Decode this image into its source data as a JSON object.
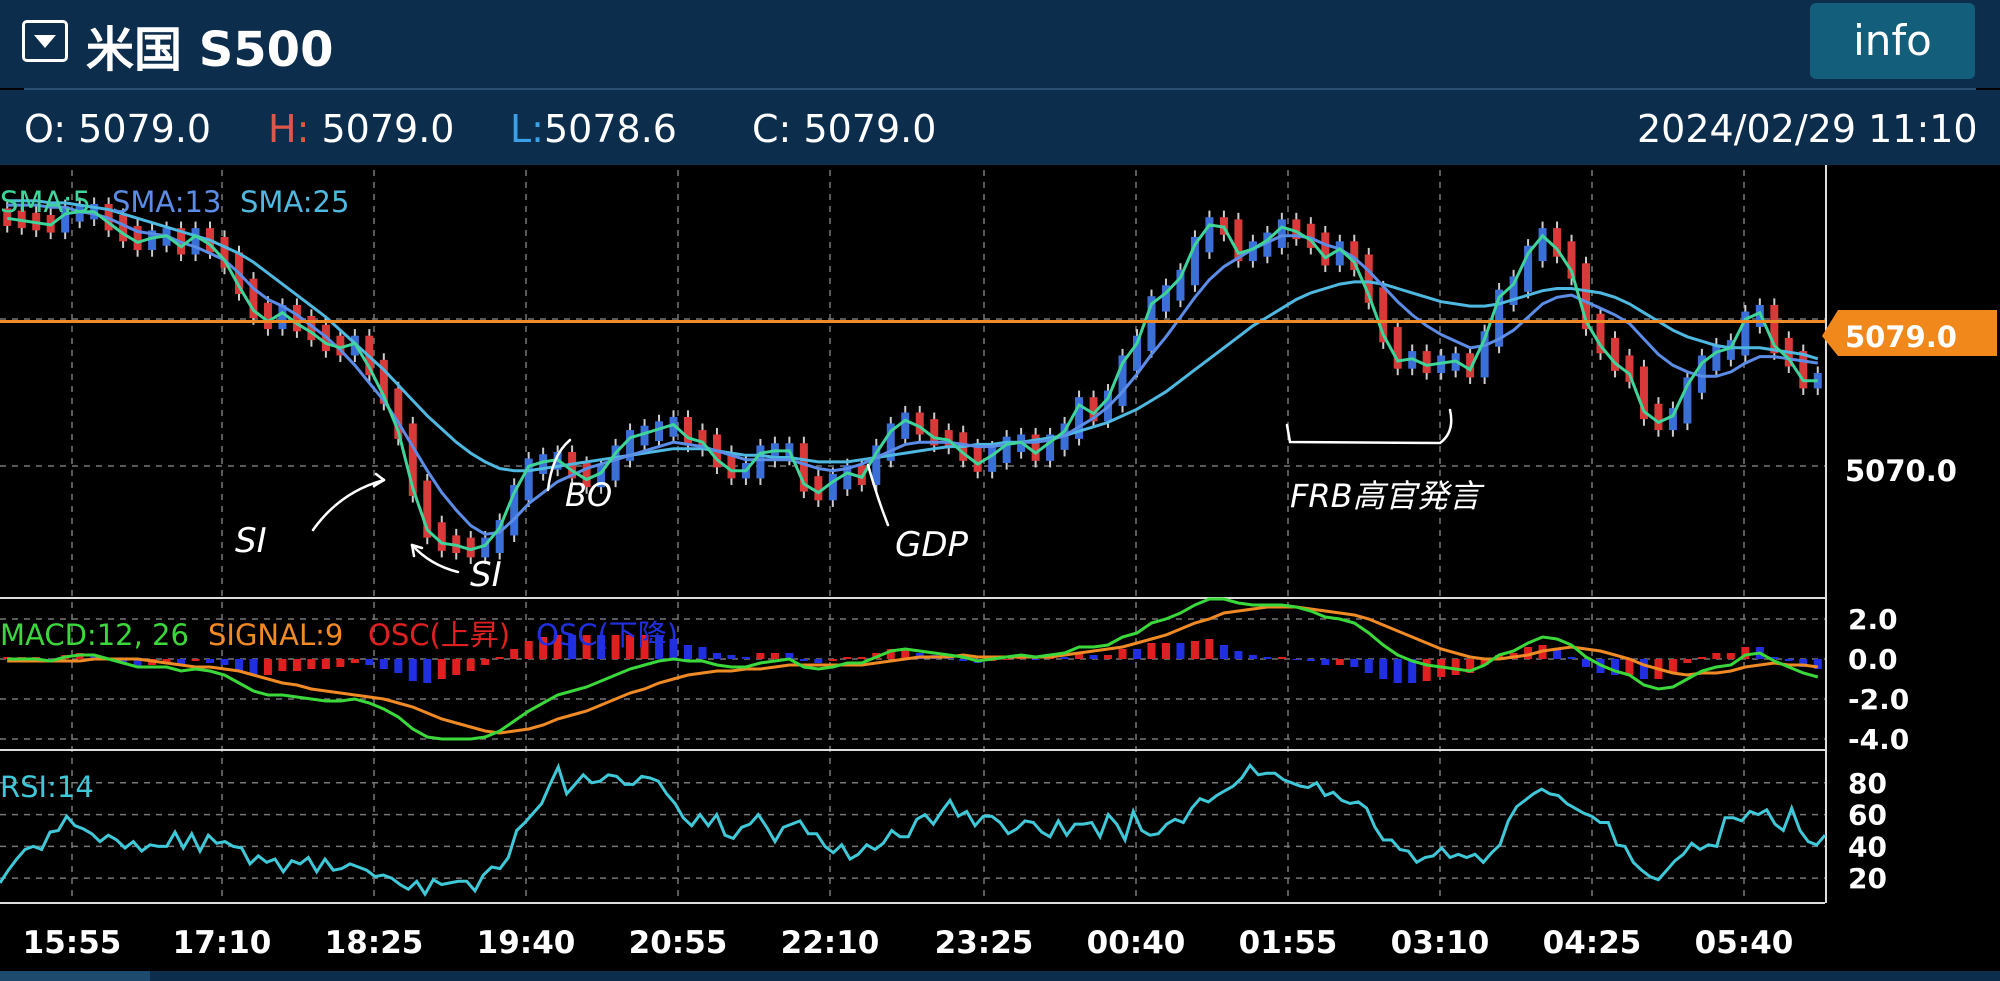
{
  "header": {
    "title": "米国 S500",
    "info_label": "info"
  },
  "ohlc": {
    "o_label": "O:",
    "o_value": "5079.0",
    "h_label": "H:",
    "h_value": "5079.0",
    "l_label": "L:",
    "l_value": "5078.6",
    "c_label": "C:",
    "c_value": "5079.0",
    "datetime": "2024/02/29 11:10"
  },
  "colors": {
    "header_bg": "#0c2d4c",
    "candle_up": "#3b6fd8",
    "candle_down": "#d83a3a",
    "sma5": "#3ed49a",
    "sma13": "#5b8ce6",
    "sma25": "#4fb8e0",
    "macd": "#3bd83b",
    "signal": "#f08a24",
    "osc_up": "#e02020",
    "osc_down": "#2030e0",
    "rsi": "#3ec8d8",
    "price_line": "#f08a24"
  },
  "chart_data": {
    "type": "candlestick",
    "price_axis": {
      "ylim": [
        5066.4,
        5085.9
      ],
      "tick_labels": [
        "5070.0"
      ],
      "current_price": 5079.0,
      "current_label": "5079.0"
    },
    "x_tick_labels": [
      "15:55",
      "17:10",
      "18:25",
      "19:40",
      "20:55",
      "22:10",
      "23:25",
      "00:40",
      "01:55",
      "03:10",
      "04:25",
      "05:40"
    ],
    "legend": {
      "sma5": "SMA:5",
      "sma13": "SMA:13",
      "sma25": "SMA:25"
    },
    "sma5": [
      5083.7,
      5083.6,
      5083.5,
      5083.4,
      5083.9,
      5084.0,
      5084.0,
      5083.5,
      5083.0,
      5082.6,
      5082.8,
      5082.9,
      5082.4,
      5082.9,
      5082.5,
      5081.8,
      5080.6,
      5079.5,
      5079.0,
      5079.4,
      5078.9,
      5078.5,
      5078.0,
      5077.8,
      5078.0,
      5076.9,
      5075.6,
      5074.0,
      5071.4,
      5069.5,
      5068.9,
      5068.8,
      5068.6,
      5068.8,
      5069.6,
      5071.2,
      5072.4,
      5072.6,
      5072.7,
      5072.2,
      5071.8,
      5072.1,
      5073.0,
      5073.7,
      5073.9,
      5074.1,
      5074.3,
      5073.7,
      5073.5,
      5072.7,
      5072.2,
      5072.2,
      5073.0,
      5073.1,
      5073.1,
      5071.6,
      5071.2,
      5071.7,
      5072.1,
      5071.9,
      5073.0,
      5074.0,
      5074.5,
      5074.2,
      5073.7,
      5073.6,
      5073.0,
      5072.5,
      5072.9,
      5073.4,
      5073.5,
      5073.0,
      5073.5,
      5074.0,
      5075.2,
      5074.8,
      5075.5,
      5077.1,
      5078.0,
      5079.8,
      5080.3,
      5081.0,
      5082.5,
      5083.4,
      5083.3,
      5082.1,
      5082.3,
      5082.7,
      5083.3,
      5083.1,
      5082.7,
      5081.9,
      5082.3,
      5081.7,
      5080.2,
      5078.4,
      5077.2,
      5077.3,
      5077.0,
      5077.1,
      5077.2,
      5076.8,
      5078.2,
      5080.1,
      5080.7,
      5082.1,
      5082.9,
      5082.3,
      5081.3,
      5079.0,
      5077.9,
      5077.1,
      5076.6,
      5074.9,
      5074.4,
      5074.7,
      5076.1,
      5077.1,
      5077.6,
      5077.8,
      5079.1,
      5079.4,
      5077.9,
      5077.3,
      5076.3,
      5076.3
    ],
    "sma13": [
      5084.3,
      5084.3,
      5084.3,
      5084.2,
      5084.2,
      5084.0,
      5083.9,
      5083.7,
      5083.4,
      5083.1,
      5083.0,
      5082.9,
      5082.6,
      5082.4,
      5082.1,
      5081.8,
      5081.2,
      5080.5,
      5080.0,
      5079.7,
      5079.3,
      5078.8,
      5078.3,
      5077.7,
      5077.0,
      5076.2,
      5075.4,
      5074.4,
      5073.3,
      5072.2,
      5071.2,
      5070.4,
      5069.7,
      5069.3,
      5069.4,
      5070.0,
      5070.7,
      5071.2,
      5071.7,
      5072.0,
      5072.3,
      5072.5,
      5072.7,
      5072.9,
      5073.1,
      5073.3,
      5073.5,
      5073.4,
      5073.3,
      5073.1,
      5072.9,
      5072.7,
      5072.7,
      5072.7,
      5072.7,
      5072.5,
      5072.3,
      5072.2,
      5072.3,
      5072.5,
      5072.8,
      5073.1,
      5073.4,
      5073.5,
      5073.5,
      5073.5,
      5073.4,
      5073.3,
      5073.3,
      5073.4,
      5073.5,
      5073.5,
      5073.6,
      5073.8,
      5074.2,
      5074.6,
      5075.1,
      5075.8,
      5076.6,
      5077.5,
      5078.3,
      5079.2,
      5080.1,
      5080.9,
      5081.5,
      5081.9,
      5082.3,
      5082.6,
      5082.9,
      5082.9,
      5082.8,
      5082.5,
      5082.3,
      5081.9,
      5081.3,
      5080.6,
      5079.9,
      5079.3,
      5078.8,
      5078.4,
      5078.1,
      5077.8,
      5077.9,
      5078.2,
      5078.6,
      5079.2,
      5079.8,
      5080.1,
      5080.2,
      5079.9,
      5079.6,
      5079.3,
      5078.9,
      5078.2,
      5077.5,
      5077.0,
      5076.7,
      5076.5,
      5076.5,
      5076.7,
      5077.1,
      5077.4,
      5077.4,
      5077.3,
      5077.2,
      5077.1
    ],
    "sma25": [
      5084.5,
      5084.5,
      5084.5,
      5084.4,
      5084.4,
      5084.3,
      5084.2,
      5084.1,
      5083.9,
      5083.7,
      5083.5,
      5083.3,
      5083.1,
      5082.9,
      5082.7,
      5082.4,
      5082.1,
      5081.7,
      5081.2,
      5080.7,
      5080.2,
      5079.7,
      5079.2,
      5078.6,
      5078.0,
      5077.4,
      5076.8,
      5076.1,
      5075.4,
      5074.7,
      5074.1,
      5073.5,
      5073.0,
      5072.6,
      5072.3,
      5072.2,
      5072.2,
      5072.3,
      5072.4,
      5072.5,
      5072.6,
      5072.7,
      5072.8,
      5072.9,
      5073.0,
      5073.1,
      5073.2,
      5073.2,
      5073.2,
      5073.1,
      5073.0,
      5072.9,
      5072.9,
      5072.8,
      5072.8,
      5072.7,
      5072.6,
      5072.6,
      5072.6,
      5072.7,
      5072.8,
      5072.9,
      5073.0,
      5073.1,
      5073.2,
      5073.3,
      5073.3,
      5073.4,
      5073.4,
      5073.5,
      5073.5,
      5073.6,
      5073.7,
      5073.8,
      5074.0,
      5074.2,
      5074.4,
      5074.7,
      5075.0,
      5075.4,
      5075.8,
      5076.3,
      5076.8,
      5077.3,
      5077.8,
      5078.3,
      5078.8,
      5079.2,
      5079.6,
      5080.0,
      5080.3,
      5080.5,
      5080.7,
      5080.8,
      5080.8,
      5080.7,
      5080.5,
      5080.3,
      5080.1,
      5079.9,
      5079.8,
      5079.7,
      5079.7,
      5079.8,
      5080.0,
      5080.2,
      5080.4,
      5080.5,
      5080.5,
      5080.4,
      5080.3,
      5080.1,
      5079.8,
      5079.4,
      5079.0,
      5078.6,
      5078.3,
      5078.1,
      5077.9,
      5077.8,
      5077.8,
      5077.8,
      5077.7,
      5077.6,
      5077.5,
      5077.3
    ],
    "annotations": [
      "SI",
      "SI",
      "BO",
      "GDP",
      "FRB高官発言"
    ]
  },
  "macd": {
    "legend_macd": "MACD:12, 26",
    "legend_signal": "SIGNAL:9",
    "legend_osc_up": "OSC(上昇)",
    "legend_osc_down": "OSC(下降)",
    "tick_labels": [
      "2.0",
      "0.0",
      "-2.0",
      "-4.0"
    ],
    "ylim": [
      -4.5,
      3.0
    ],
    "macd": [
      0.0,
      0.0,
      0.0,
      -0.1,
      0.1,
      0.2,
      0.2,
      0.0,
      -0.2,
      -0.4,
      -0.4,
      -0.4,
      -0.6,
      -0.5,
      -0.6,
      -0.8,
      -1.2,
      -1.6,
      -1.8,
      -1.8,
      -1.9,
      -2.0,
      -2.1,
      -2.1,
      -2.0,
      -2.2,
      -2.5,
      -2.9,
      -3.5,
      -3.9,
      -4.0,
      -4.0,
      -4.0,
      -3.9,
      -3.6,
      -3.1,
      -2.6,
      -2.2,
      -1.8,
      -1.6,
      -1.4,
      -1.1,
      -0.8,
      -0.5,
      -0.3,
      -0.1,
      0.0,
      -0.1,
      -0.1,
      -0.3,
      -0.4,
      -0.4,
      -0.2,
      -0.1,
      0.0,
      -0.4,
      -0.5,
      -0.4,
      -0.2,
      -0.2,
      0.1,
      0.4,
      0.5,
      0.4,
      0.3,
      0.2,
      0.1,
      -0.1,
      0.0,
      0.1,
      0.2,
      0.1,
      0.2,
      0.3,
      0.6,
      0.6,
      0.7,
      1.1,
      1.3,
      1.8,
      2.0,
      2.3,
      2.7,
      3.0,
      3.0,
      2.8,
      2.7,
      2.7,
      2.7,
      2.6,
      2.4,
      2.1,
      2.0,
      1.8,
      1.3,
      0.7,
      0.2,
      -0.1,
      -0.3,
      -0.4,
      -0.5,
      -0.6,
      -0.3,
      0.2,
      0.4,
      0.8,
      1.1,
      1.0,
      0.7,
      0.1,
      -0.3,
      -0.6,
      -0.8,
      -1.3,
      -1.5,
      -1.4,
      -1.0,
      -0.6,
      -0.4,
      -0.3,
      0.2,
      0.3,
      -0.1,
      -0.4,
      -0.7,
      -0.9
    ],
    "signal": [
      -0.1,
      -0.1,
      -0.1,
      -0.1,
      -0.1,
      -0.1,
      0.0,
      0.0,
      0.0,
      0.0,
      -0.1,
      -0.2,
      -0.3,
      -0.4,
      -0.4,
      -0.5,
      -0.6,
      -0.8,
      -1.0,
      -1.2,
      -1.3,
      -1.5,
      -1.6,
      -1.7,
      -1.8,
      -1.9,
      -2.0,
      -2.2,
      -2.4,
      -2.7,
      -3.0,
      -3.2,
      -3.4,
      -3.6,
      -3.7,
      -3.6,
      -3.5,
      -3.3,
      -3.0,
      -2.8,
      -2.6,
      -2.3,
      -2.0,
      -1.7,
      -1.5,
      -1.2,
      -1.0,
      -0.8,
      -0.7,
      -0.6,
      -0.6,
      -0.5,
      -0.5,
      -0.4,
      -0.3,
      -0.3,
      -0.3,
      -0.3,
      -0.3,
      -0.3,
      -0.2,
      -0.1,
      0.0,
      0.1,
      0.1,
      0.1,
      0.2,
      0.1,
      0.1,
      0.1,
      0.1,
      0.1,
      0.1,
      0.2,
      0.3,
      0.4,
      0.5,
      0.6,
      0.8,
      1.0,
      1.2,
      1.5,
      1.8,
      2.0,
      2.3,
      2.4,
      2.5,
      2.6,
      2.6,
      2.6,
      2.5,
      2.4,
      2.3,
      2.2,
      2.0,
      1.7,
      1.4,
      1.1,
      0.8,
      0.5,
      0.3,
      0.1,
      0.0,
      0.0,
      0.1,
      0.2,
      0.4,
      0.5,
      0.6,
      0.5,
      0.4,
      0.2,
      0.0,
      -0.3,
      -0.5,
      -0.7,
      -0.8,
      -0.7,
      -0.7,
      -0.6,
      -0.4,
      -0.3,
      -0.2,
      -0.3,
      -0.3,
      -0.4
    ]
  },
  "rsi": {
    "legend": "RSI:14",
    "tick_labels": [
      "80",
      "60",
      "40",
      "20"
    ],
    "ylim": [
      5,
      100
    ],
    "values": [
      17,
      25,
      32,
      38,
      40,
      38,
      49,
      50,
      59,
      53,
      51,
      48,
      43,
      47,
      44,
      39,
      43,
      37,
      41,
      40,
      40,
      49,
      39,
      48,
      37,
      47,
      42,
      43,
      40,
      39,
      29,
      34,
      30,
      32,
      24,
      31,
      29,
      33,
      24,
      32,
      25,
      26,
      29,
      27,
      25,
      21,
      22,
      20,
      16,
      13,
      18,
      10,
      19,
      16,
      17,
      18,
      18,
      12,
      22,
      27,
      26,
      33,
      50,
      55,
      61,
      67,
      79,
      90,
      73,
      79,
      85,
      80,
      81,
      85,
      84,
      79,
      79,
      84,
      83,
      81,
      73,
      67,
      58,
      53,
      60,
      53,
      60,
      47,
      45,
      52,
      54,
      60,
      52,
      43,
      52,
      54,
      56,
      48,
      48,
      40,
      36,
      41,
      32,
      35,
      41,
      38,
      42,
      50,
      46,
      46,
      57,
      60,
      54,
      62,
      69,
      59,
      62,
      53,
      59,
      59,
      55,
      48,
      51,
      56,
      55,
      49,
      46,
      56,
      47,
      54,
      54,
      55,
      46,
      60,
      54,
      44,
      62,
      50,
      47,
      48,
      54,
      57,
      55,
      64,
      70,
      68,
      72,
      75,
      78,
      83,
      91,
      85,
      86,
      86,
      82,
      80,
      78,
      77,
      80,
      72,
      74,
      69,
      67,
      68,
      64,
      52,
      44,
      44,
      38,
      37,
      30,
      33,
      34,
      39,
      33,
      35,
      33,
      35,
      30,
      36,
      41,
      56,
      65,
      69,
      73,
      76,
      73,
      72,
      67,
      64,
      61,
      59,
      55,
      55,
      41,
      40,
      30,
      25,
      21,
      19,
      25,
      31,
      35,
      42,
      38,
      41,
      40,
      58,
      58,
      56,
      62,
      60,
      63,
      54,
      50,
      64,
      50,
      43,
      41,
      47
    ]
  }
}
